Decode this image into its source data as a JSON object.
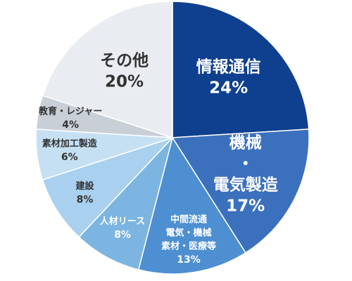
{
  "chart_data": {
    "type": "pie",
    "categories": [
      [
        "情報通信"
      ],
      [
        "機械",
        "・",
        "電気製造"
      ],
      [
        "中間流通",
        "電気・機械",
        "素材・医療等"
      ],
      [
        "人材リース"
      ],
      [
        "建設"
      ],
      [
        "素材加工製造"
      ],
      [
        "教育・レジャー"
      ],
      [
        "その他"
      ]
    ],
    "values": [
      24,
      17,
      13,
      8,
      8,
      6,
      4,
      20
    ],
    "value_labels": [
      "24%",
      "17%",
      "13%",
      "8%",
      "8%",
      "6%",
      "4%",
      "20%"
    ],
    "colors": [
      "#0f3f8f",
      "#3b70bd",
      "#4d8fd1",
      "#7cb5e1",
      "#a9d0ee",
      "#c6e0f3",
      "#c9cfd6",
      "#e9ecf0"
    ]
  }
}
